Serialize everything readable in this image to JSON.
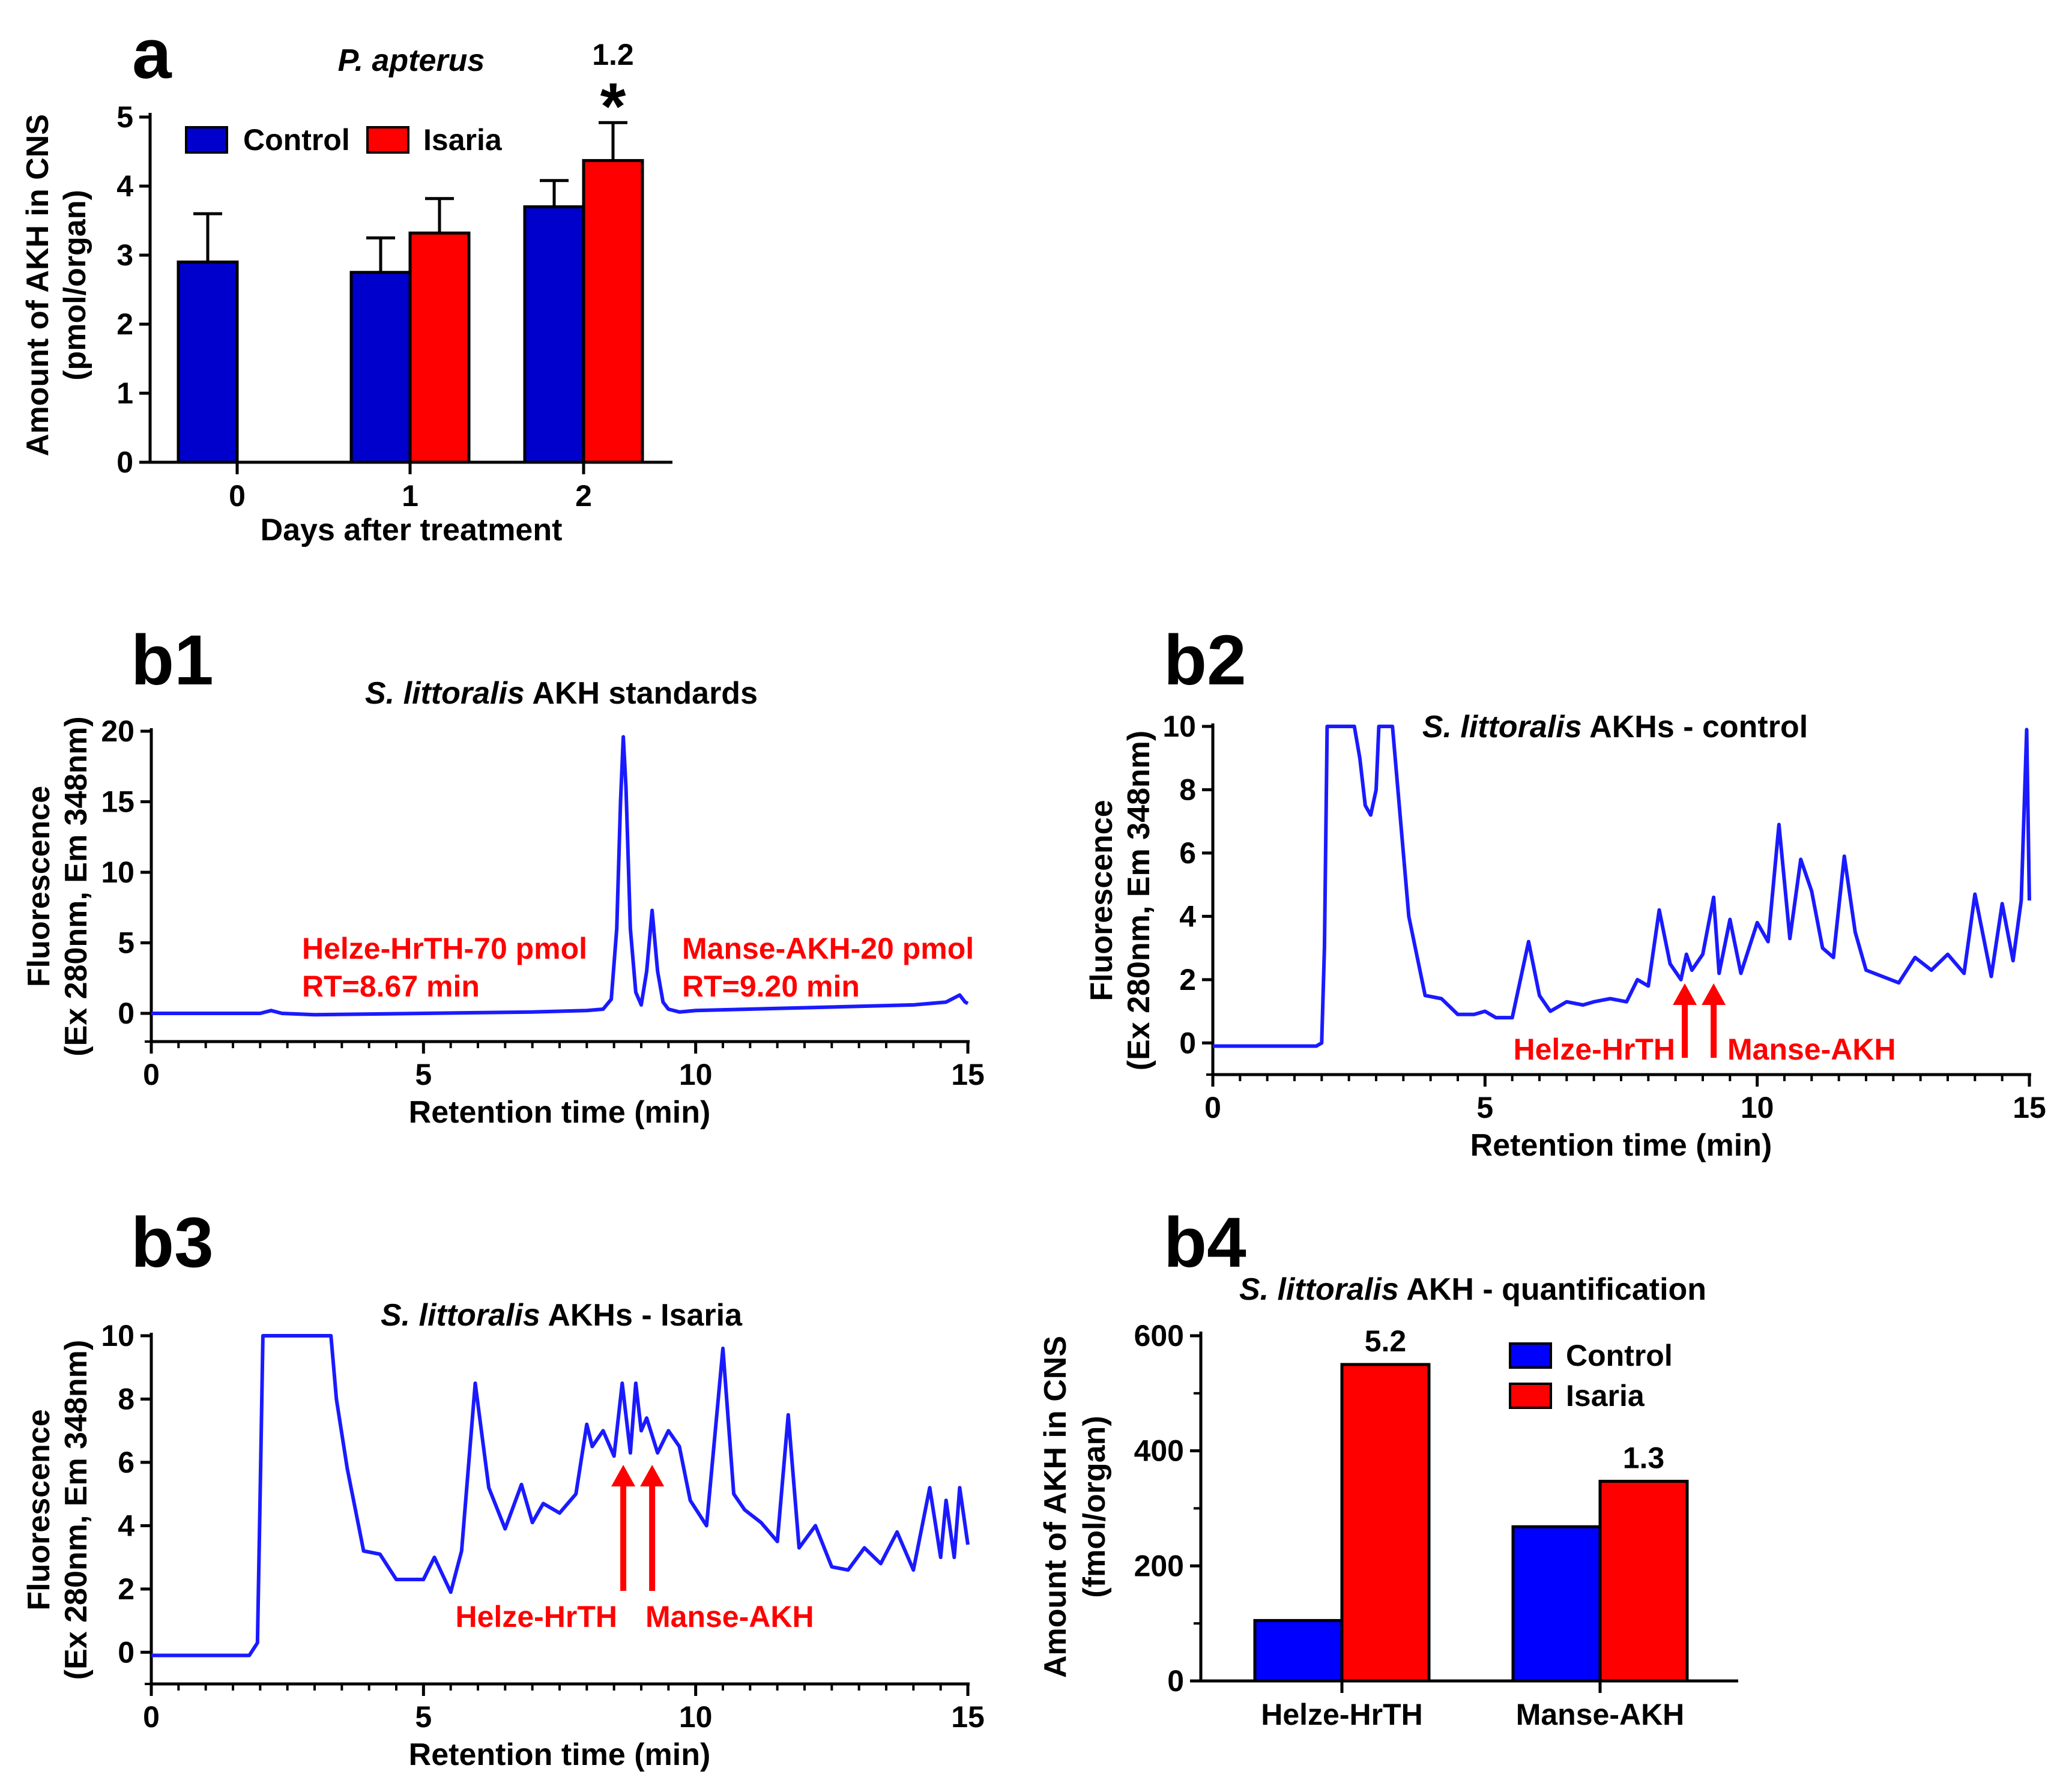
{
  "chart_data": [
    {
      "panel": "a",
      "type": "bar",
      "title": "P. apterus",
      "categories": [
        "0",
        "1",
        "2"
      ],
      "series": [
        {
          "name": "Control",
          "color": "#0000cc",
          "values": [
            2.9,
            2.75,
            3.7
          ],
          "errors": [
            0.7,
            0.5,
            0.38
          ]
        },
        {
          "name": "Isaria",
          "color": "#ff0000",
          "values": [
            null,
            3.32,
            4.37
          ],
          "errors": [
            null,
            0.5,
            0.55
          ]
        }
      ],
      "annotations": [
        {
          "category": "2",
          "ratio": "1.2",
          "marker": "*"
        }
      ],
      "xlabel": "Days after treatment",
      "ylabel_line1": "Amount of AKH in CNS",
      "ylabel_line2": "(pmol/organ)",
      "yticks": [
        "0",
        "1",
        "2",
        "3",
        "4",
        "5"
      ],
      "ylim": [
        0,
        5
      ],
      "legend": "top-left"
    },
    {
      "panel": "b1",
      "type": "line",
      "title_italic": "S. littoralis",
      "title_rest": " AKH standards",
      "xlabel": "Retention time (min)",
      "ylabel_line1": "Fluorescence",
      "ylabel_line2": "(Ex 280nm, Em 348nm)",
      "xlim": [
        0,
        15
      ],
      "ylim": [
        -2,
        20
      ],
      "xticks": [
        "0",
        "5",
        "10",
        "15"
      ],
      "yticks": [
        "0",
        "5",
        "10",
        "15",
        "20"
      ],
      "series": [
        {
          "name": "trace",
          "color": "#1a1aff",
          "x": [
            0,
            2,
            2.2,
            2.4,
            3,
            5,
            7,
            8,
            8.3,
            8.45,
            8.55,
            8.62,
            8.67,
            8.72,
            8.8,
            8.9,
            9.0,
            9.1,
            9.2,
            9.3,
            9.4,
            9.5,
            9.7,
            10,
            12,
            14,
            14.6,
            14.85,
            14.95,
            15
          ],
          "y": [
            0,
            0,
            0.2,
            0,
            -0.1,
            0,
            0.1,
            0.2,
            0.3,
            1,
            6,
            15,
            19.6,
            16,
            6,
            1.5,
            0.6,
            3,
            7.3,
            3,
            0.8,
            0.3,
            0.1,
            0.2,
            0.4,
            0.6,
            0.8,
            1.3,
            0.8,
            0.7
          ]
        }
      ],
      "annotations": [
        {
          "line1": "Helze-HrTH-70 pmol",
          "line2": "RT=8.67 min"
        },
        {
          "line1": "Manse-AKH-20 pmol",
          "line2": "RT=9.20 min"
        }
      ]
    },
    {
      "panel": "b2",
      "type": "line",
      "title_italic": "S. littoralis",
      "title_rest": " AKHs - control",
      "xlabel": "Retention time (min)",
      "ylabel_line1": "Fluorescence",
      "ylabel_line2": "(Ex 280nm, Em 348nm)",
      "xlim": [
        0,
        15
      ],
      "ylim": [
        -1,
        10
      ],
      "xticks": [
        "0",
        "5",
        "10",
        "15"
      ],
      "yticks": [
        "0",
        "2",
        "4",
        "6",
        "8",
        "10"
      ],
      "series": [
        {
          "name": "trace",
          "color": "#1a1aff",
          "x": [
            0,
            1.9,
            2.0,
            2.05,
            2.1,
            2.3,
            2.5,
            2.6,
            2.7,
            2.8,
            2.9,
            3.0,
            3.05,
            3.15,
            3.3,
            3.6,
            3.9,
            4.2,
            4.5,
            4.8,
            5.0,
            5.2,
            5.5,
            5.8,
            6.0,
            6.2,
            6.5,
            6.8,
            7.0,
            7.3,
            7.6,
            7.8,
            8.0,
            8.2,
            8.4,
            8.6,
            8.7,
            8.8,
            9.0,
            9.2,
            9.3,
            9.5,
            9.7,
            10.0,
            10.2,
            10.4,
            10.6,
            10.8,
            11.0,
            11.2,
            11.4,
            11.6,
            11.8,
            12.0,
            12.3,
            12.6,
            12.9,
            13.2,
            13.5,
            13.8,
            14.0,
            14.3,
            14.5,
            14.7,
            14.85,
            14.95,
            15.0
          ],
          "y": [
            -0.1,
            -0.1,
            0,
            3,
            10,
            10,
            10,
            10,
            9,
            7.5,
            7.2,
            8,
            10,
            10,
            10,
            4,
            1.5,
            1.4,
            0.9,
            0.9,
            1.0,
            0.8,
            0.8,
            3.2,
            1.5,
            1.0,
            1.3,
            1.2,
            1.3,
            1.4,
            1.3,
            2.0,
            1.8,
            4.2,
            2.5,
            2.0,
            2.8,
            2.3,
            2.8,
            4.6,
            2.2,
            3.9,
            2.2,
            3.8,
            3.2,
            6.9,
            3.3,
            5.8,
            4.8,
            3.0,
            2.7,
            5.9,
            3.5,
            2.3,
            2.1,
            1.9,
            2.7,
            2.3,
            2.8,
            2.2,
            4.7,
            2.1,
            4.4,
            2.6,
            4.5,
            9.9,
            4.5
          ]
        }
      ],
      "annotations": [
        {
          "label": "Helze-HrTH"
        },
        {
          "label": "Manse-AKH"
        }
      ]
    },
    {
      "panel": "b3",
      "type": "line",
      "title_italic": "S. littoralis",
      "title_rest": " AKHs - Isaria",
      "xlabel": "Retention time (min)",
      "ylabel_line1": "Fluorescence",
      "ylabel_line2": "(Ex 280nm, Em 348nm)",
      "xlim": [
        0,
        15
      ],
      "ylim": [
        -1,
        10
      ],
      "xticks": [
        "0",
        "5",
        "10",
        "15"
      ],
      "yticks": [
        "0",
        "2",
        "4",
        "6",
        "8",
        "10"
      ],
      "series": [
        {
          "name": "trace",
          "color": "#1a1aff",
          "x": [
            0,
            1.8,
            1.95,
            2.0,
            2.05,
            2.1,
            3.2,
            3.3,
            3.4,
            3.6,
            3.9,
            4.2,
            4.5,
            5.0,
            5.2,
            5.5,
            5.7,
            5.95,
            6.2,
            6.5,
            6.8,
            7.0,
            7.2,
            7.5,
            7.8,
            8.0,
            8.1,
            8.3,
            8.5,
            8.65,
            8.8,
            8.9,
            9.0,
            9.1,
            9.3,
            9.5,
            9.7,
            9.9,
            10.2,
            10.5,
            10.7,
            10.9,
            11.2,
            11.5,
            11.7,
            11.9,
            12.2,
            12.5,
            12.8,
            13.1,
            13.4,
            13.7,
            14.0,
            14.3,
            14.5,
            14.6,
            14.75,
            14.85,
            15.0
          ],
          "y": [
            -0.1,
            -0.1,
            0.3,
            5,
            10,
            10,
            10,
            10,
            8,
            5.8,
            3.2,
            3.1,
            2.3,
            2.3,
            3.0,
            1.9,
            3.2,
            8.5,
            5.2,
            3.9,
            5.3,
            4.1,
            4.7,
            4.4,
            5.0,
            7.2,
            6.5,
            7.0,
            6.2,
            8.5,
            6.3,
            8.5,
            7.0,
            7.4,
            6.3,
            7.0,
            6.5,
            4.8,
            4.0,
            9.6,
            5.0,
            4.5,
            4.1,
            3.5,
            7.5,
            3.3,
            4.0,
            2.7,
            2.6,
            3.3,
            2.8,
            3.8,
            2.6,
            5.2,
            3.0,
            4.8,
            3.0,
            5.2,
            3.4
          ]
        }
      ],
      "annotations": [
        {
          "label": "Helze-HrTH"
        },
        {
          "label": "Manse-AKH"
        }
      ]
    },
    {
      "panel": "b4",
      "type": "bar",
      "title_italic": "S. littoralis",
      "title_rest": " AKH - quantification",
      "categories": [
        "Helze-HrTH",
        "Manse-AKH"
      ],
      "series": [
        {
          "name": "Control",
          "color": "#0000ff",
          "values": [
            105,
            268
          ]
        },
        {
          "name": "Isaria",
          "color": "#ff0000",
          "values": [
            550,
            347
          ]
        }
      ],
      "annotations": [
        {
          "category": "Helze-HrTH",
          "ratio": "5.2"
        },
        {
          "category": "Manse-AKH",
          "ratio": "1.3"
        }
      ],
      "ylabel_line1": "Amount of AKH in CNS",
      "ylabel_line2": "(fmol/organ)",
      "yticks": [
        "0",
        "200",
        "400",
        "600"
      ],
      "ylim": [
        0,
        600
      ],
      "legend": "top-right"
    }
  ]
}
